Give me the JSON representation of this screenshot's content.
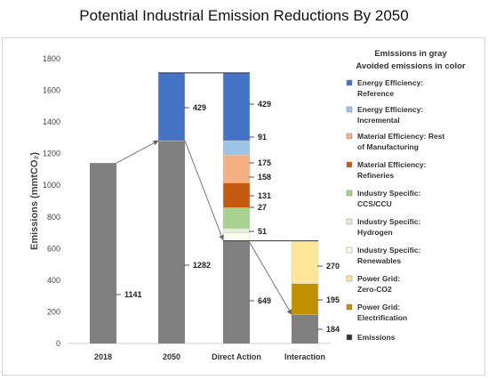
{
  "title": "Potential Industrial Emission Reductions By 2050",
  "chart_data": {
    "type": "bar",
    "categories": [
      "2018",
      "2050",
      "Direct Action",
      "Interaction"
    ],
    "ylabel": "Emissions (mmtCO₂)",
    "ylim": [
      0,
      1800
    ],
    "yticks": [
      0,
      200,
      400,
      600,
      800,
      1000,
      1200,
      1400,
      1600,
      1800
    ],
    "grid": false,
    "legend_position": "right",
    "legend_header": [
      "Emissions in gray",
      "Avoided emissions in color"
    ],
    "series": [
      {
        "key": "ee_ref",
        "name": "Energy Efficiency: Reference",
        "color": "#4472c4"
      },
      {
        "key": "ee_inc",
        "name": "Energy Efficiency: Incremental",
        "color": "#9dc3e6"
      },
      {
        "key": "me_rest",
        "name": "Material Efficiency: Rest of Manufacturing",
        "color": "#f4b183"
      },
      {
        "key": "me_ref",
        "name": "Material Efficiency: Refineries",
        "color": "#c55a11"
      },
      {
        "key": "is_ccs",
        "name": "Industry Specific: CCS/CCU",
        "color": "#a9d18e"
      },
      {
        "key": "is_h2",
        "name": "Industry Specific: Hydrogen",
        "color": "#e2efd9"
      },
      {
        "key": "is_ren",
        "name": "Industry Specific: Renewables",
        "color": "#fbfbee"
      },
      {
        "key": "pg_zero",
        "name": "Power Grid: Zero-CO2",
        "color": "#ffe699"
      },
      {
        "key": "pg_elec",
        "name": "Power Grid: Electrification",
        "color": "#bf9000"
      },
      {
        "key": "emissions",
        "name": "Emissions",
        "color": "#808080"
      }
    ],
    "bars": [
      {
        "category": "2018",
        "segments": [
          {
            "series": "emissions",
            "value": 1141,
            "label": "1141"
          }
        ]
      },
      {
        "category": "2050",
        "segments": [
          {
            "series": "emissions",
            "value": 1282,
            "label": "1282"
          },
          {
            "series": "ee_ref",
            "value": 429,
            "label": "429"
          }
        ]
      },
      {
        "category": "Direct Action",
        "segments": [
          {
            "series": "emissions",
            "value": 649,
            "label": "649"
          },
          {
            "series": "is_ren",
            "value": 51,
            "label": "51"
          },
          {
            "series": "is_h2",
            "value": 27,
            "label": "27"
          },
          {
            "series": "is_ccs",
            "value": 131,
            "label": "131"
          },
          {
            "series": "me_ref",
            "value": 158,
            "label": "158"
          },
          {
            "series": "me_rest",
            "value": 175,
            "label": "175"
          },
          {
            "series": "ee_inc",
            "value": 91,
            "label": "91"
          },
          {
            "series": "ee_ref",
            "value": 429,
            "label": "429"
          }
        ]
      },
      {
        "category": "Interaction",
        "segments": [
          {
            "series": "emissions",
            "value": 184,
            "label": "184"
          },
          {
            "series": "pg_elec",
            "value": 195,
            "label": "195"
          },
          {
            "series": "pg_zero",
            "value": 270,
            "label": "270"
          }
        ]
      }
    ]
  }
}
